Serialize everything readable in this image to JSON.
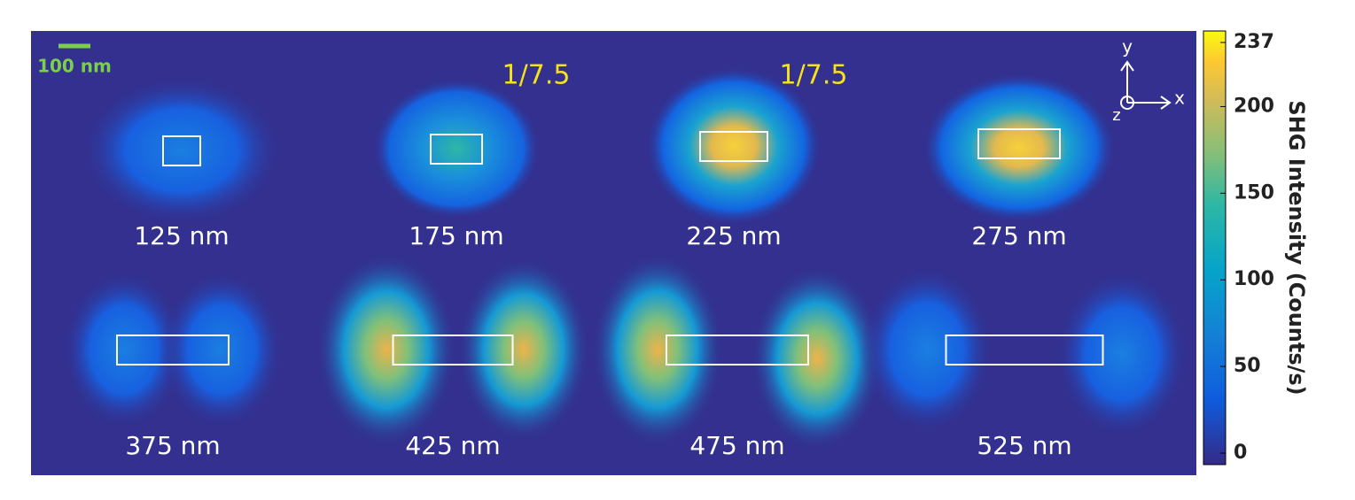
{
  "scale_bar": "100 nm",
  "axes": {
    "x": "x",
    "y": "y",
    "z": "z"
  },
  "panels": [
    {
      "label": "125 nm"
    },
    {
      "label": "175 nm",
      "factor": "1/7.5"
    },
    {
      "label": "225 nm",
      "factor": "1/7.5"
    },
    {
      "label": "275 nm"
    },
    {
      "label": "375 nm"
    },
    {
      "label": "425 nm"
    },
    {
      "label": "475 nm"
    },
    {
      "label": "525 nm"
    }
  ],
  "colorbar": {
    "label": "SHG Intensity (Counts/s)",
    "lim": [
      0,
      237
    ],
    "ticks": [
      0,
      50,
      100,
      150,
      200,
      237
    ]
  }
}
